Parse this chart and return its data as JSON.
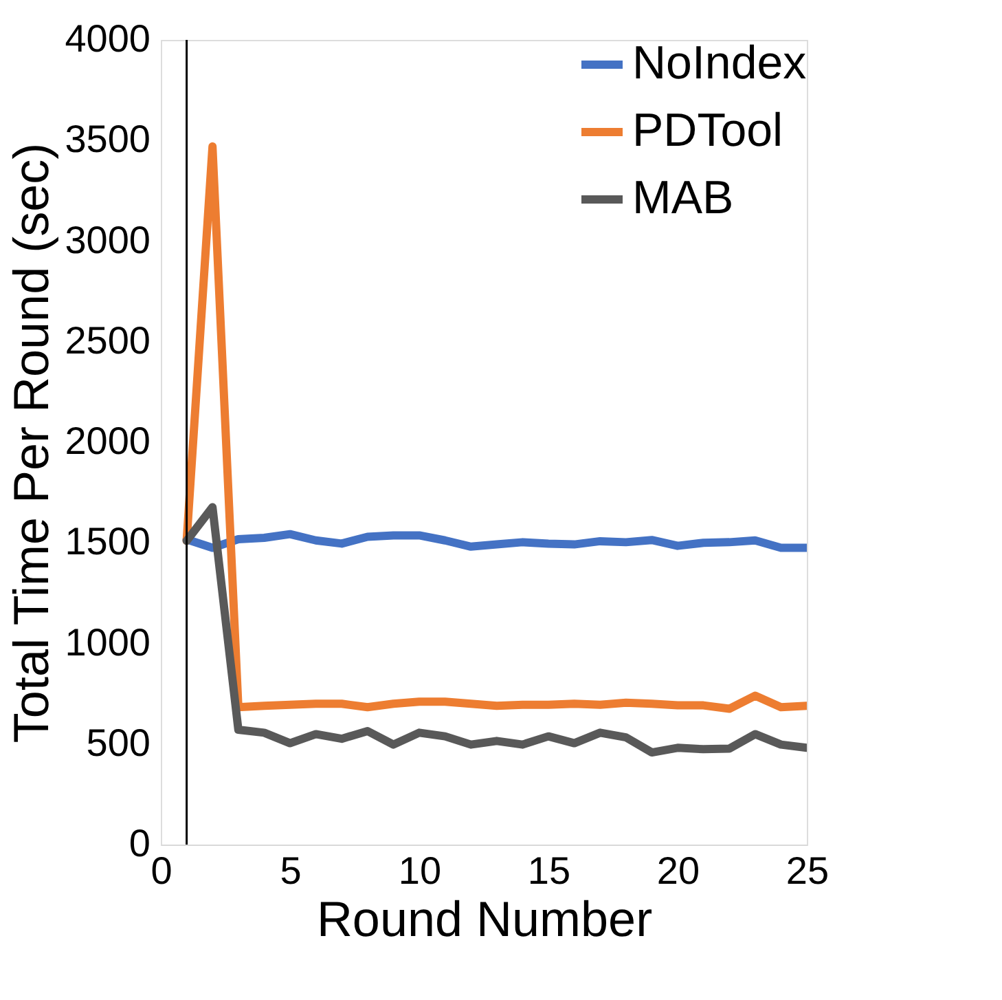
{
  "chart_data": {
    "type": "line",
    "xlabel": "Round Number",
    "ylabel": "Total Time Per Round (sec)",
    "x": [
      1,
      2,
      3,
      4,
      5,
      6,
      7,
      8,
      9,
      10,
      11,
      12,
      13,
      14,
      15,
      16,
      17,
      18,
      19,
      20,
      21,
      22,
      23,
      24,
      25
    ],
    "series": [
      {
        "name": "NoIndex",
        "color": "#4472c4",
        "values": [
          1517,
          1475,
          1518,
          1525,
          1543,
          1512,
          1496,
          1530,
          1537,
          1537,
          1512,
          1481,
          1492,
          1503,
          1496,
          1492,
          1508,
          1503,
          1514,
          1485,
          1500,
          1503,
          1512,
          1475,
          1475
        ]
      },
      {
        "name": "PDTool",
        "color": "#ed7d31",
        "values": [
          1510,
          3470,
          683,
          690,
          695,
          700,
          700,
          683,
          700,
          710,
          710,
          700,
          690,
          695,
          695,
          700,
          695,
          705,
          700,
          692,
          692,
          675,
          740,
          683,
          690
        ]
      },
      {
        "name": "MAB",
        "color": "#595959",
        "values": [
          1510,
          1677,
          571,
          556,
          504,
          549,
          526,
          564,
          497,
          556,
          538,
          497,
          515,
          497,
          538,
          504,
          556,
          533,
          458,
          481,
          474,
          477,
          549,
          497,
          481
        ]
      }
    ],
    "xlim": [
      0,
      25
    ],
    "xticks": [
      0,
      5,
      10,
      15,
      20,
      25
    ],
    "ylim": [
      0,
      4000
    ],
    "yticks": [
      0,
      500,
      1000,
      1500,
      2000,
      2500,
      3000,
      3500,
      4000
    ],
    "ref_lines": [
      {
        "axis": "x",
        "value": 1,
        "color": "#000000"
      }
    ],
    "grid": false,
    "legend": "top right",
    "marker": "none",
    "line_style": "solid"
  }
}
